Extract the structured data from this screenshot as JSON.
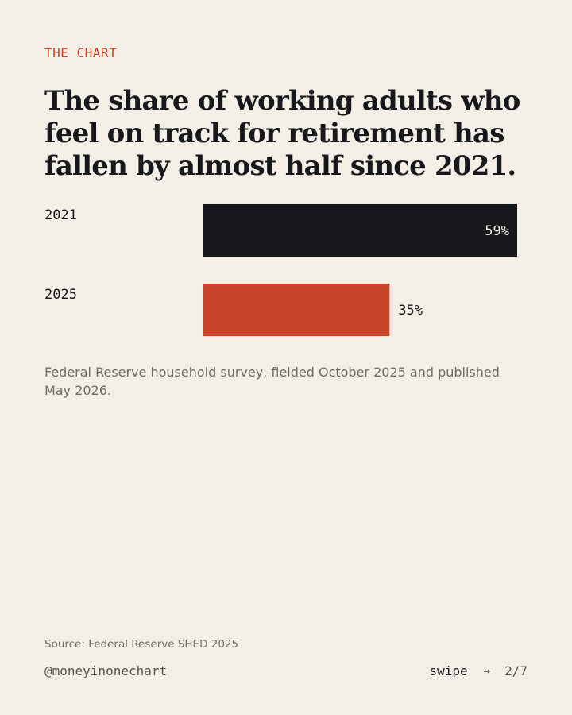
{
  "kicker": "THE CHART",
  "headline": "The share of working adults who feel on track for retirement has fallen by almost half since 2021.",
  "chart_data": {
    "type": "bar",
    "orientation": "horizontal",
    "categories": [
      "2021",
      "2025"
    ],
    "values": [
      59,
      35
    ],
    "value_labels": [
      "59%",
      "35%"
    ],
    "unit": "%",
    "colors": [
      "#17181b",
      "#c8452a"
    ],
    "xlim": [
      0,
      59
    ],
    "grid": false,
    "legend": "none"
  },
  "note": "Federal Reserve household survey, fielded October 2025 and published May 2026.",
  "source": "Source: Federal Reserve SHED 2025",
  "handle": "@moneyinonechart",
  "nav": {
    "swipe_label": "swipe",
    "arrow": "→",
    "page": "2/7"
  },
  "colors": {
    "background": "#f3eee6",
    "accent": "#c8452a",
    "ink": "#17181b"
  }
}
